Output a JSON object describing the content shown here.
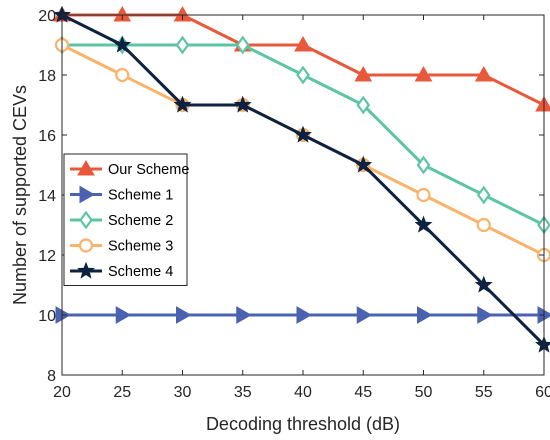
{
  "chart_data": {
    "type": "line",
    "xlabel": "Decoding threshold (dB)",
    "ylabel": "Number of supported CEVs",
    "x": [
      20,
      25,
      30,
      35,
      40,
      45,
      50,
      55,
      60
    ],
    "xlim": [
      20,
      60
    ],
    "ylim": [
      8,
      20
    ],
    "xticks": [
      20,
      25,
      30,
      35,
      40,
      45,
      50,
      55,
      60
    ],
    "yticks": [
      8,
      10,
      12,
      14,
      16,
      18,
      20
    ],
    "grid": false,
    "legend_position": "center-left",
    "series": [
      {
        "name": "Our Scheme",
        "color": "#E8593C",
        "marker": "triangle-up",
        "values": [
          20,
          20,
          20,
          19,
          19,
          18,
          18,
          18,
          17
        ]
      },
      {
        "name": "Scheme 1",
        "color": "#4A62B0",
        "marker": "triangle-right",
        "values": [
          10,
          10,
          10,
          10,
          10,
          10,
          10,
          10,
          10
        ]
      },
      {
        "name": "Scheme 2",
        "color": "#5DC4A5",
        "marker": "diamond",
        "values": [
          19,
          19,
          19,
          19,
          18,
          17,
          15,
          14,
          13
        ]
      },
      {
        "name": "Scheme 3",
        "color": "#F9B36B",
        "marker": "circle",
        "values": [
          19,
          18,
          17,
          17,
          16,
          15,
          14,
          13,
          12
        ]
      },
      {
        "name": "Scheme 4",
        "color": "#0D2240",
        "marker": "star",
        "values": [
          20,
          19,
          17,
          17,
          16,
          15,
          13,
          11,
          9
        ]
      }
    ]
  }
}
